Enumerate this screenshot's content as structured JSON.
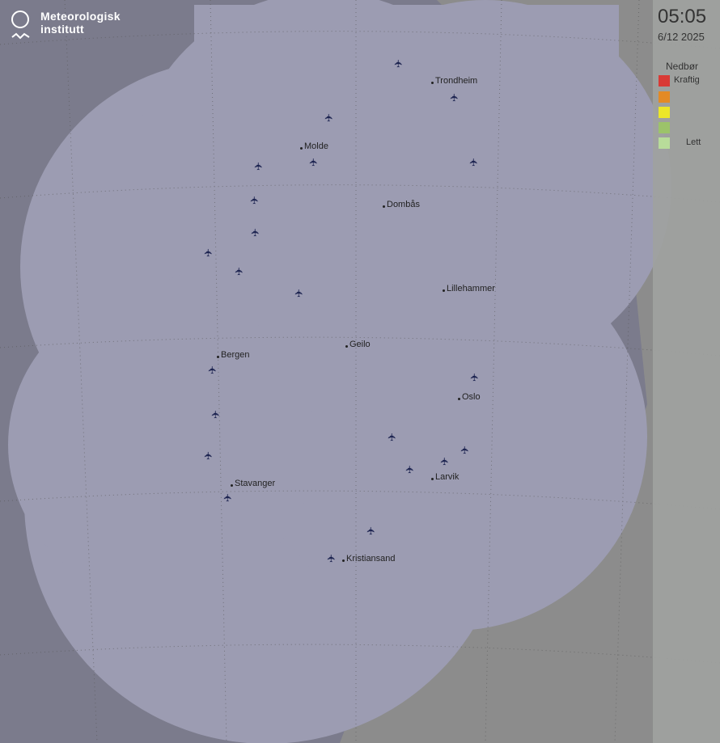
{
  "brand": {
    "line1": "Meteorologisk",
    "line2": "institutt"
  },
  "time": "05:05",
  "date": "6/12 2025",
  "legend": {
    "title": "Nedbør",
    "items": [
      {
        "color": "#d93a35",
        "label": "Kraftig"
      },
      {
        "color": "#e38a25",
        "label": ""
      },
      {
        "color": "#ece728",
        "label": ""
      },
      {
        "color": "#9cc36a",
        "label": ""
      },
      {
        "color": "#b8dc9a",
        "label": "Lett"
      }
    ]
  },
  "cities": [
    "Trondheim",
    "Molde",
    "Dombås",
    "Lillehammer",
    "Geilo",
    "Bergen",
    "Oslo",
    "Larvik",
    "Stavanger",
    "Kristiansand"
  ],
  "icons": {
    "airport": "airplane-icon",
    "logo": "met-logo-icon"
  }
}
